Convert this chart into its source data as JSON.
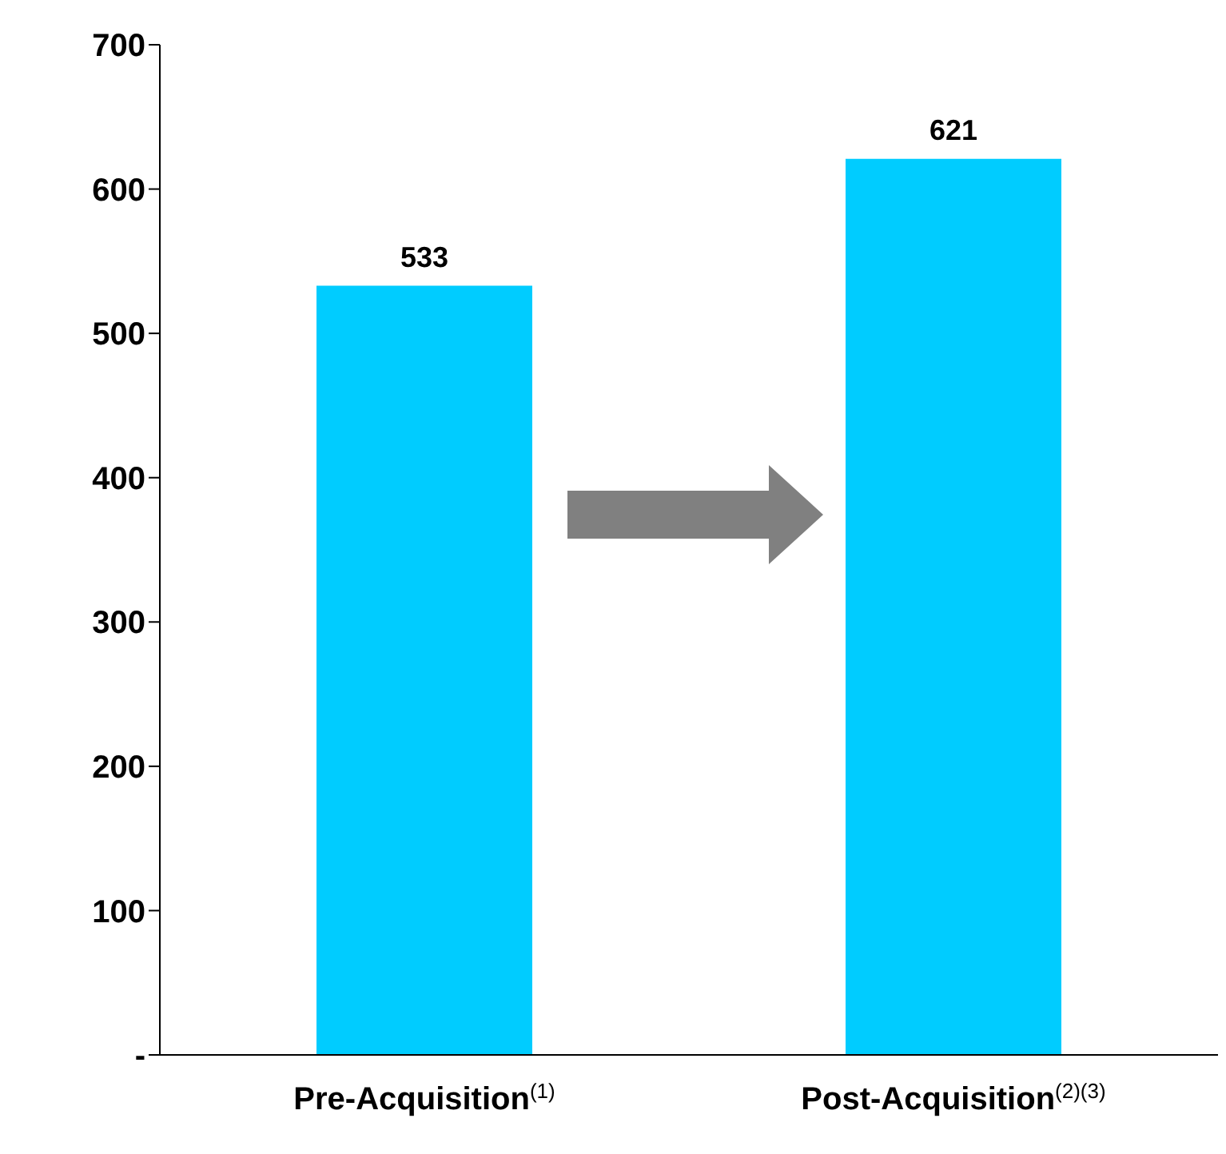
{
  "chart_data": {
    "type": "bar",
    "categories": [
      "Pre-Acquisition$^{(1)}$",
      "Post-Acquisition$^{(2)(3)}$"
    ],
    "values": [
      533,
      621
    ],
    "color": "#00ccff",
    "ylim": [
      0,
      700
    ],
    "yticks": [
      {
        "value": 0,
        "label": "-"
      },
      100,
      200,
      300,
      400,
      500,
      600,
      700
    ],
    "grid": false,
    "data_labels": true
  }
}
